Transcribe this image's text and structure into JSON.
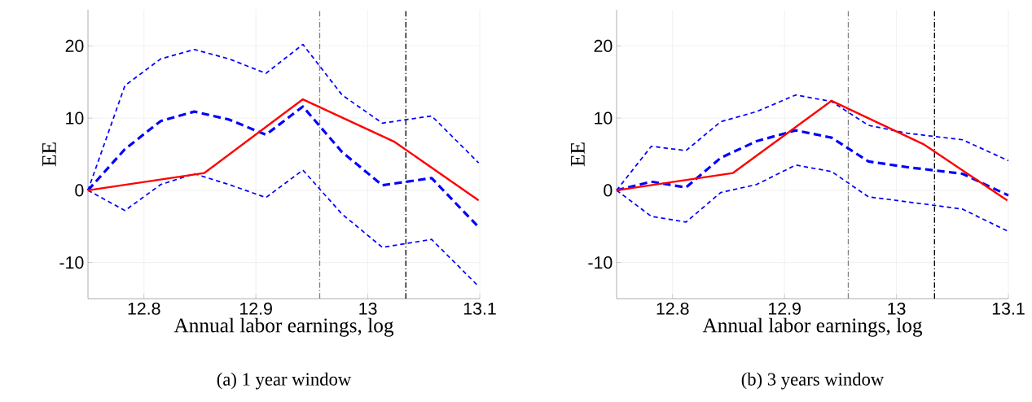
{
  "chart_data": [
    {
      "type": "line",
      "title": "(a) 1 year window",
      "xlabel": "Annual labor earnings, log",
      "ylabel": "EE",
      "xlim": [
        12.75,
        13.1
      ],
      "ylim": [
        -15,
        25
      ],
      "xticks": [
        12.8,
        12.9,
        13,
        13.1
      ],
      "yticks": [
        -10,
        0,
        10,
        20
      ],
      "grid": true,
      "marker": "none",
      "series": [
        {
          "color": "#0000ff",
          "line_style": "dashed",
          "x": [
            12.75,
            12.783,
            12.815,
            12.845,
            12.876,
            12.909,
            12.942,
            12.977,
            13.013,
            13.057,
            13.099
          ],
          "values": [
            0,
            14.5,
            18.2,
            19.5,
            18.2,
            16.2,
            20.2,
            13.2,
            9.3,
            10.3,
            3.8
          ]
        },
        {
          "color": "#0000ff",
          "line_style": "dashed",
          "x": [
            12.75,
            12.783,
            12.815,
            12.845,
            12.876,
            12.909,
            12.942,
            12.977,
            13.013,
            13.057,
            13.099
          ],
          "values": [
            0,
            5.7,
            9.6,
            10.9,
            9.8,
            7.7,
            11.6,
            5.3,
            0.7,
            1.7,
            -5.1
          ]
        },
        {
          "color": "#0000ff",
          "line_style": "dashed",
          "x": [
            12.75,
            12.783,
            12.815,
            12.845,
            12.876,
            12.909,
            12.942,
            12.977,
            13.013,
            13.057,
            13.099
          ],
          "values": [
            0,
            -2.8,
            0.8,
            2.3,
            0.8,
            -1.0,
            2.8,
            -3.3,
            -7.9,
            -6.8,
            -13.3
          ]
        },
        {
          "color": "#ff0000",
          "line_style": "solid",
          "x": [
            12.75,
            12.854,
            12.942,
            13.024,
            13.099
          ],
          "values": [
            0,
            2.4,
            12.6,
            6.7,
            -1.4
          ]
        }
      ],
      "ref_lines": [
        {
          "axis": "x",
          "value": 12.957,
          "color": "#808080",
          "line_style": "dashed"
        },
        {
          "axis": "x",
          "value": 13.034,
          "color": "#000000",
          "line_style": "dashed"
        }
      ]
    },
    {
      "type": "line",
      "title": "(b) 3 years window",
      "xlabel": "Annual labor earnings, log",
      "ylabel": "EE",
      "xlim": [
        12.75,
        13.1
      ],
      "ylim": [
        -15,
        25
      ],
      "xticks": [
        12.8,
        12.9,
        13,
        13.1
      ],
      "yticks": [
        -10,
        0,
        10,
        20
      ],
      "grid": true,
      "marker": "none",
      "series": [
        {
          "color": "#0000ff",
          "line_style": "dashed",
          "x": [
            12.75,
            12.781,
            12.812,
            12.843,
            12.875,
            12.91,
            12.942,
            12.975,
            13.01,
            13.059,
            13.1
          ],
          "values": [
            0,
            6.1,
            5.5,
            9.5,
            10.9,
            13.2,
            12.3,
            9.0,
            7.9,
            7.0,
            4.1
          ]
        },
        {
          "color": "#0000ff",
          "line_style": "dashed",
          "x": [
            12.75,
            12.781,
            12.812,
            12.843,
            12.875,
            12.91,
            12.942,
            12.975,
            13.01,
            13.059,
            13.1
          ],
          "values": [
            0,
            1.2,
            0.4,
            4.5,
            6.8,
            8.3,
            7.3,
            4.0,
            3.2,
            2.3,
            -0.7
          ]
        },
        {
          "color": "#0000ff",
          "line_style": "dashed",
          "x": [
            12.75,
            12.781,
            12.812,
            12.843,
            12.875,
            12.91,
            12.942,
            12.975,
            13.01,
            13.059,
            13.1
          ],
          "values": [
            0,
            -3.6,
            -4.4,
            -0.3,
            0.8,
            3.5,
            2.6,
            -0.9,
            -1.6,
            -2.6,
            -5.7
          ]
        },
        {
          "color": "#ff0000",
          "line_style": "solid",
          "x": [
            12.75,
            12.854,
            12.942,
            13.024,
            13.099
          ],
          "values": [
            0,
            2.4,
            12.4,
            6.4,
            -1.4
          ]
        }
      ],
      "ref_lines": [
        {
          "axis": "x",
          "value": 12.957,
          "color": "#808080",
          "line_style": "dashed"
        },
        {
          "axis": "x",
          "value": 13.034,
          "color": "#000000",
          "line_style": "dashed"
        }
      ]
    }
  ]
}
